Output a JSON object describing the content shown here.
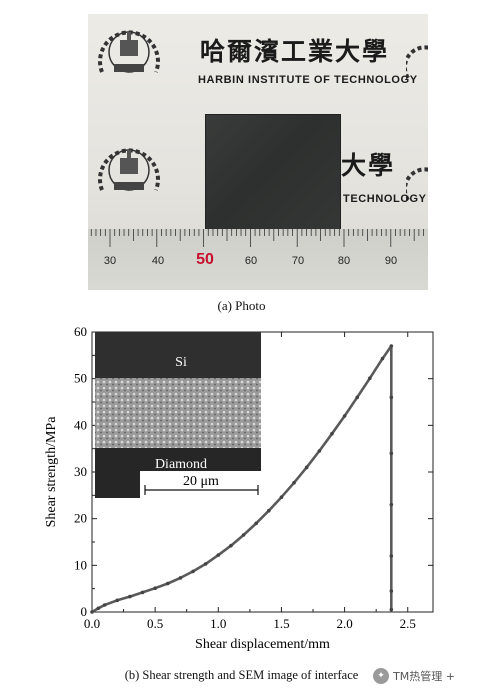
{
  "photo": {
    "university_cn": "哈爾濱工業大學",
    "university_cn_partial": "大學",
    "university_en": "HARBIN INSTITUTE OF TECHNOLOGY",
    "university_en_partial": "TECHNOLOGY",
    "ruler_labels": [
      "30",
      "40",
      "50",
      "60",
      "70",
      "80",
      "90"
    ],
    "ruler_highlight": "50",
    "caption": "(a) Photo"
  },
  "chart_data": {
    "type": "line",
    "title": "",
    "xlabel": "Shear displacement/mm",
    "ylabel": "Shear strength/MPa",
    "xlim": [
      0,
      2.7
    ],
    "ylim": [
      0,
      60
    ],
    "xticks": [
      "0.0",
      "0.5",
      "1.0",
      "1.5",
      "2.0",
      "2.5"
    ],
    "yticks": [
      "0",
      "10",
      "20",
      "30",
      "40",
      "50",
      "60"
    ],
    "series": [
      {
        "x": [
          0.0,
          0.05,
          0.1,
          0.2,
          0.3,
          0.4,
          0.5,
          0.6,
          0.7,
          0.8,
          0.9,
          1.0,
          1.1,
          1.2,
          1.3,
          1.4,
          1.5,
          1.6,
          1.7,
          1.8,
          1.9,
          2.0,
          2.1,
          2.2,
          2.3,
          2.37,
          2.37,
          2.37,
          2.37,
          2.37,
          2.37,
          2.37
        ],
        "values": [
          0,
          0.8,
          1.5,
          2.5,
          3.3,
          4.2,
          5.1,
          6.1,
          7.3,
          8.7,
          10.3,
          12.2,
          14.2,
          16.5,
          19.0,
          21.7,
          24.6,
          27.7,
          31.0,
          34.5,
          38.2,
          42.0,
          46.0,
          50.1,
          54.3,
          57.0,
          46.0,
          34.0,
          23.0,
          12.0,
          4.5,
          0.5
        ]
      }
    ],
    "inset": {
      "top_label": "Si",
      "bottom_label": "Diamond",
      "scale_bar": "20 μm"
    },
    "caption": "(b) Shear strength and SEM image of interface"
  },
  "watermark": {
    "text": "TM热管理 +"
  },
  "colors": {
    "curve": "#5a5a5a",
    "marker": "#444444",
    "sample": "#333534"
  }
}
